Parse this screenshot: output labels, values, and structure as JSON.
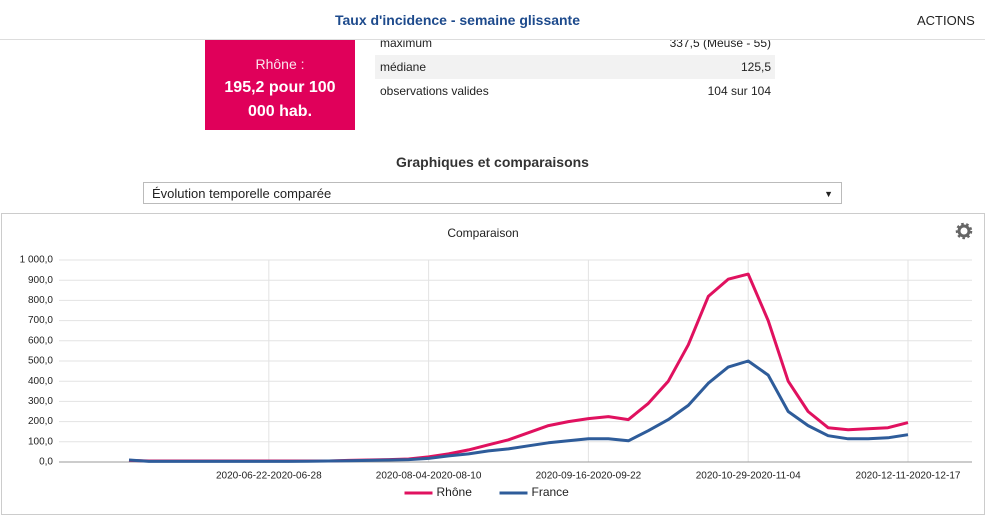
{
  "header": {
    "title": "Taux d'incidence - semaine glissante",
    "actions": "ACTIONS"
  },
  "summary": {
    "label": "Rhône :",
    "value": "195,2 pour 100 000 hab."
  },
  "stats": {
    "rows": [
      [
        "maximum",
        "337,5 (Meuse - 55)"
      ],
      [
        "médiane",
        "125,5"
      ],
      [
        "observations valides",
        "104 sur 104"
      ]
    ]
  },
  "section": {
    "title": "Graphiques et comparaisons",
    "select": "Évolution temporelle comparée"
  },
  "chart_data": {
    "type": "line",
    "title": "Comparaison",
    "categories": [
      null,
      null,
      null,
      null,
      null,
      null,
      null,
      "2020-06-22-2020-06-28",
      null,
      null,
      null,
      null,
      null,
      null,
      null,
      "2020-08-04-2020-08-10",
      null,
      null,
      null,
      null,
      null,
      null,
      null,
      "2020-09-16-2020-09-22",
      null,
      null,
      null,
      null,
      null,
      null,
      null,
      "2020-10-29-2020-11-04",
      null,
      null,
      null,
      null,
      null,
      null,
      null,
      "2020-12-11-2020-12-17"
    ],
    "series": [
      {
        "name": "Rhône",
        "color": "#e0115f",
        "values": [
          8,
          5,
          5,
          5,
          5,
          5,
          5,
          5,
          5,
          5,
          5,
          8,
          10,
          12,
          15,
          25,
          40,
          60,
          85,
          110,
          145,
          180,
          200,
          215,
          225,
          210,
          290,
          400,
          580,
          820,
          905,
          930,
          700,
          400,
          250,
          170,
          160,
          165,
          170,
          195.2
        ]
      },
      {
        "name": "France",
        "color": "#2e5c9a",
        "values": [
          10,
          3,
          3,
          3,
          3,
          3,
          3,
          3,
          3,
          4,
          5,
          6,
          8,
          10,
          12,
          18,
          30,
          40,
          55,
          65,
          80,
          95,
          105,
          115,
          115,
          105,
          155,
          210,
          280,
          390,
          470,
          500,
          430,
          250,
          180,
          130,
          115,
          115,
          120,
          135
        ]
      }
    ],
    "ylim": [
      0,
      1000
    ],
    "yticks": [
      {
        "value": 0,
        "label": "0,0"
      },
      {
        "value": 100,
        "label": "100,0"
      },
      {
        "value": 200,
        "label": "200,0"
      },
      {
        "value": 300,
        "label": "300,0"
      },
      {
        "value": 400,
        "label": "400,0"
      },
      {
        "value": 500,
        "label": "500,0"
      },
      {
        "value": 600,
        "label": "600,0"
      },
      {
        "value": 700,
        "label": "700,0"
      },
      {
        "value": 800,
        "label": "800,0"
      },
      {
        "value": 900,
        "label": "900,0"
      },
      {
        "value": 1000,
        "label": "1 000,0"
      }
    ],
    "grid": true,
    "legend": "bottom"
  }
}
